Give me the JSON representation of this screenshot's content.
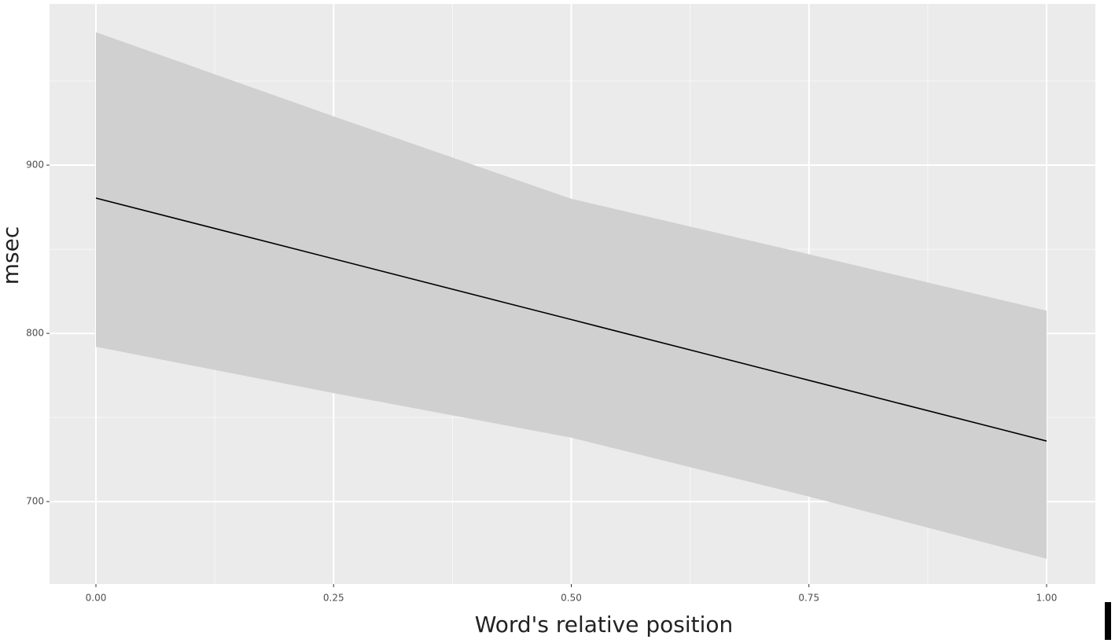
{
  "chart_data": {
    "type": "ribbon-line",
    "x_label": "Word's relative position",
    "y_label": "msec",
    "x": [
      0,
      0.25,
      0.5,
      0.75,
      1
    ],
    "values": [
      880.4,
      844.3,
      808.2,
      772.1,
      736.0
    ],
    "lower": [
      792,
      764.5,
      738,
      703,
      666
    ],
    "upper": [
      979,
      929,
      880,
      847,
      813.5
    ],
    "color": "#000000",
    "band_color": "#d0d0d0",
    "panel_color": "#ebebeb",
    "xlim": [
      -0.0488,
      1.0513
    ],
    "ylim": [
      651,
      995.8
    ],
    "xticks": [
      {
        "value": 0,
        "label": "0.00"
      },
      0.25,
      {
        "value": 0.5,
        "label": "0.50"
      },
      0.75,
      {
        "value": 1,
        "label": "1.00"
      }
    ],
    "yticks": [
      700,
      800,
      900
    ],
    "grid": true
  }
}
